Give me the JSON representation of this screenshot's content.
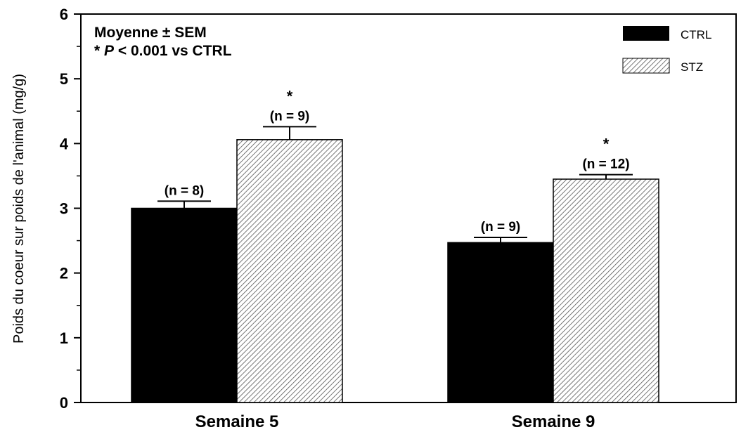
{
  "chart_data": {
    "type": "bar",
    "categories": [
      "Semaine 5",
      "Semaine 9"
    ],
    "ylabel": "Poids du coeur sur poids de l'animal (mg/g)",
    "ylim": [
      0,
      6
    ],
    "yticks": [
      0,
      1,
      2,
      3,
      4,
      5,
      6
    ],
    "series": [
      {
        "name": "CTRL",
        "values": [
          3.0,
          2.47
        ],
        "errors": [
          0.11,
          0.08
        ],
        "n_labels": [
          "(n = 8)",
          "(n = 9)"
        ],
        "significant": [
          false,
          false
        ],
        "fill": "solid",
        "color": "#000000"
      },
      {
        "name": "STZ",
        "values": [
          4.06,
          3.45
        ],
        "errors": [
          0.2,
          0.07
        ],
        "n_labels": [
          "(n = 9)",
          "(n = 12)"
        ],
        "significant": [
          true,
          true
        ],
        "fill": "hatched",
        "color": "#808080"
      }
    ],
    "annotations": {
      "line1": "Moyenne ± SEM",
      "line2_star": "* ",
      "line2_p": "P",
      "line2_rest": " < 0.001 vs CTRL",
      "significance_marker": "*"
    },
    "legend_position": "top-right",
    "grid": false
  }
}
